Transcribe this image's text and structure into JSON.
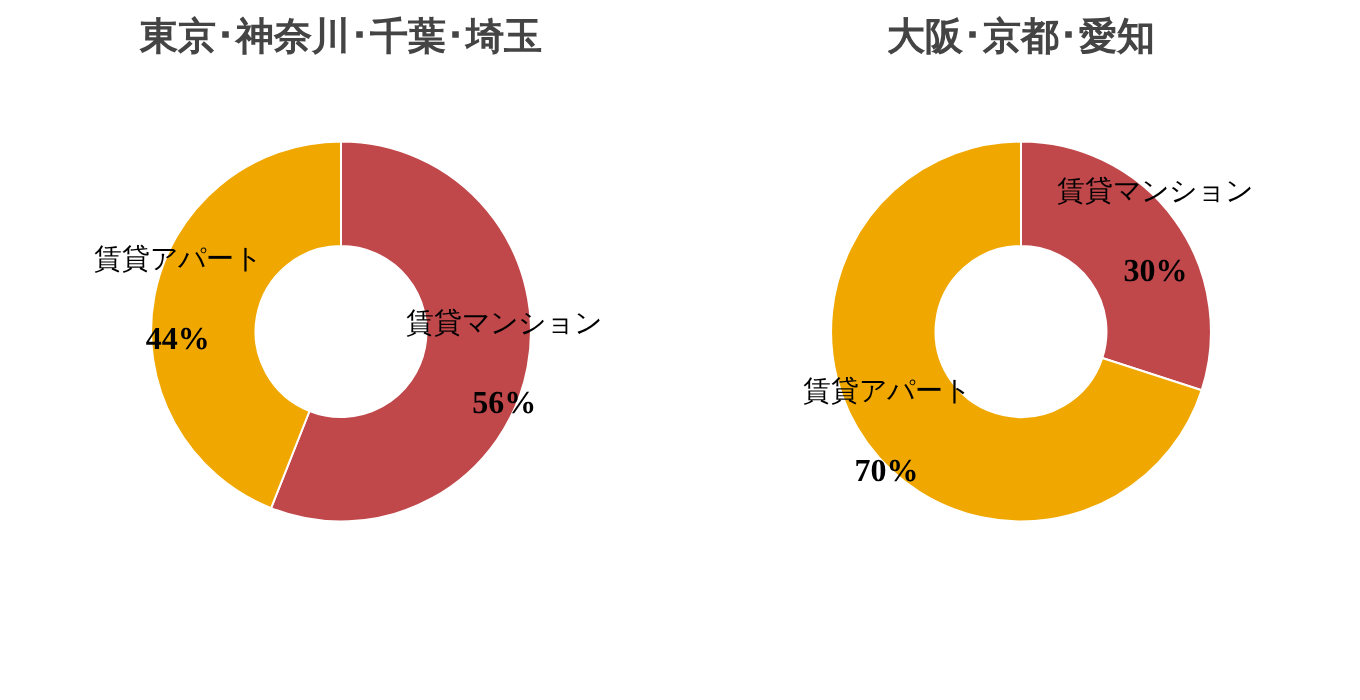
{
  "chart_data": [
    {
      "type": "donut",
      "title": "東京･神奈川･千葉･埼玉",
      "categories": [
        "賃貸マンション",
        "賃貸アパート"
      ],
      "values": [
        56,
        44
      ],
      "colors": [
        "#c0474a",
        "#f0a800"
      ],
      "value_labels": [
        "56%",
        "44%"
      ],
      "legend": false
    },
    {
      "type": "donut",
      "title": "大阪･京都･愛知",
      "categories": [
        "賃貸マンション",
        "賃貸アパート"
      ],
      "values": [
        30,
        70
      ],
      "colors": [
        "#c0474a",
        "#f0a800"
      ],
      "value_labels": [
        "30%",
        "70%"
      ],
      "legend": false
    }
  ]
}
